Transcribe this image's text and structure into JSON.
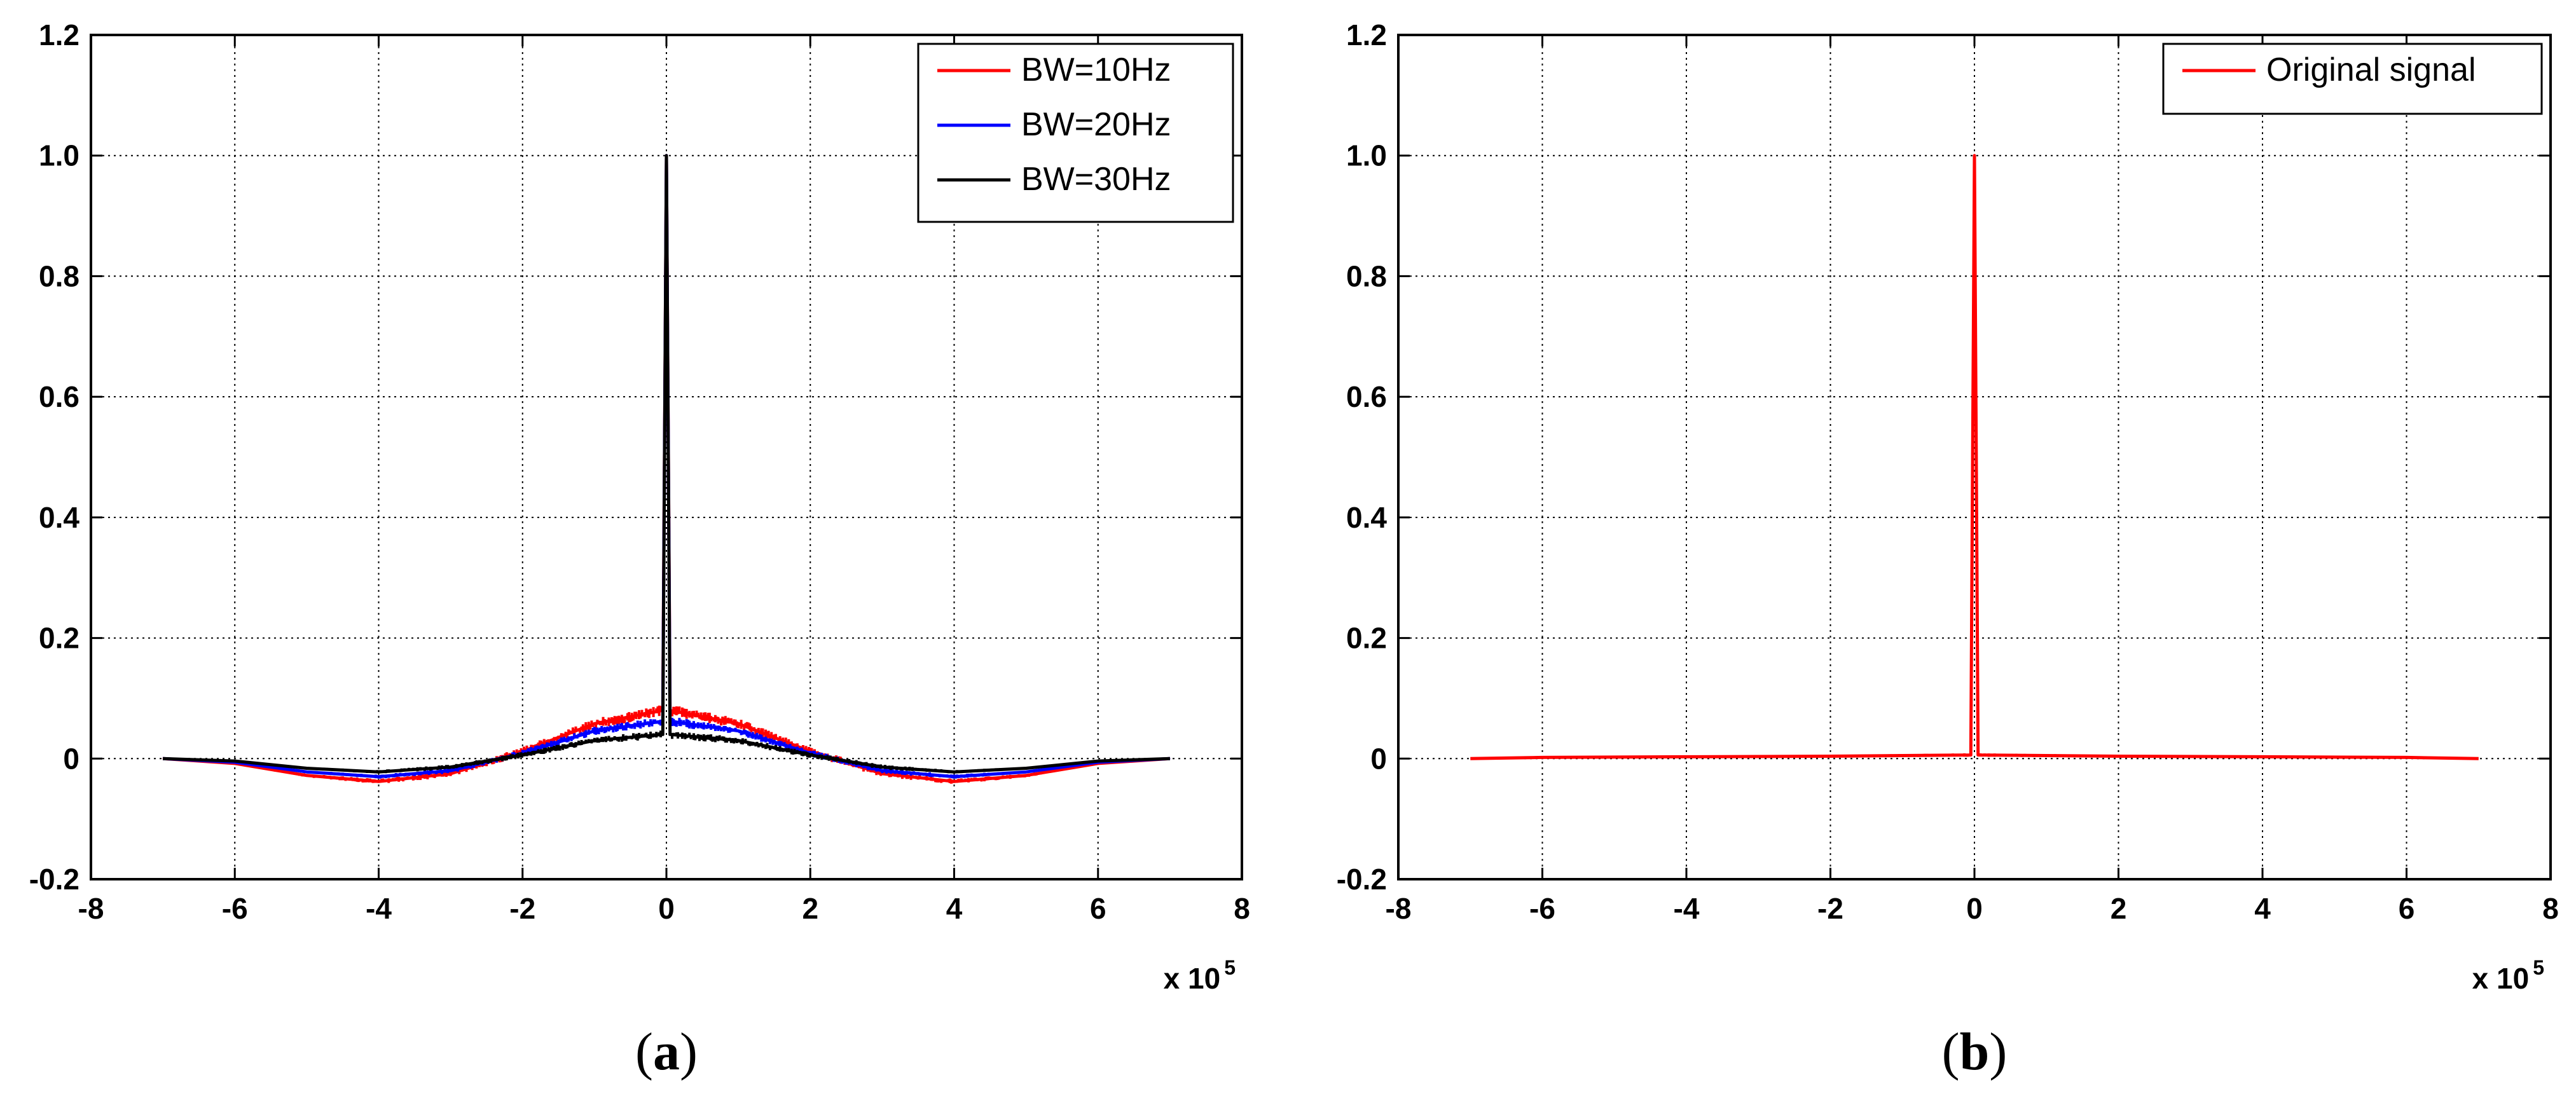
{
  "chart_data": [
    {
      "type": "line",
      "panel_label": "a",
      "title": "",
      "xlabel": "",
      "ylabel": "",
      "x_multiplier": "x 10",
      "x_exponent": "5",
      "xlim": [
        -8,
        8
      ],
      "ylim": [
        -0.2,
        1.2
      ],
      "xticks": [
        "-8",
        "-6",
        "-4",
        "-2",
        "0",
        "2",
        "4",
        "6",
        "8"
      ],
      "yticks": [
        "-0.2",
        "0",
        "0.2",
        "0.4",
        "0.6",
        "0.8",
        "1.0",
        "1.2"
      ],
      "grid": true,
      "legend_position": "top-right",
      "series": [
        {
          "name": "BW=10Hz",
          "color": "#ff0000",
          "x": [
            -7,
            -6,
            -5,
            -4,
            -3,
            -2,
            -1,
            -0.05,
            0,
            0.05,
            1,
            2,
            3,
            4,
            5,
            6,
            7
          ],
          "y": [
            0,
            -0.008,
            -0.028,
            -0.038,
            -0.025,
            0.012,
            0.058,
            0.08,
            1.0,
            0.08,
            0.058,
            0.012,
            -0.025,
            -0.038,
            -0.028,
            -0.008,
            0
          ],
          "noise": 0.01
        },
        {
          "name": "BW=20Hz",
          "color": "#0000ff",
          "x": [
            -7,
            -6,
            -5,
            -4,
            -3,
            -2,
            -1,
            -0.05,
            0,
            0.05,
            1,
            2,
            3,
            4,
            5,
            6,
            7
          ],
          "y": [
            0,
            -0.006,
            -0.022,
            -0.03,
            -0.02,
            0.009,
            0.046,
            0.062,
            1.0,
            0.062,
            0.046,
            0.009,
            -0.02,
            -0.03,
            -0.022,
            -0.006,
            0
          ],
          "noise": 0.008
        },
        {
          "name": "BW=30Hz",
          "color": "#000000",
          "x": [
            -7,
            -6,
            -5,
            -4,
            -3,
            -2,
            -1,
            -0.05,
            0,
            0.05,
            1,
            2,
            3,
            4,
            5,
            6,
            7
          ],
          "y": [
            0,
            -0.004,
            -0.016,
            -0.022,
            -0.014,
            0.006,
            0.03,
            0.04,
            1.0,
            0.04,
            0.03,
            0.006,
            -0.014,
            -0.022,
            -0.016,
            -0.004,
            0
          ],
          "noise": 0.007
        }
      ]
    },
    {
      "type": "line",
      "panel_label": "b",
      "title": "",
      "xlabel": "",
      "ylabel": "",
      "x_multiplier": "x 10",
      "x_exponent": "5",
      "xlim": [
        -8,
        8
      ],
      "ylim": [
        -0.2,
        1.2
      ],
      "xticks": [
        "-8",
        "-6",
        "-4",
        "-2",
        "0",
        "2",
        "4",
        "6",
        "8"
      ],
      "yticks": [
        "-0.2",
        "0",
        "0.2",
        "0.4",
        "0.6",
        "0.8",
        "1.0",
        "1.2"
      ],
      "grid": true,
      "legend_position": "top-right",
      "series": [
        {
          "name": "Original signal",
          "color": "#ff0000",
          "x": [
            -7,
            -6,
            -4,
            -2,
            -0.05,
            0,
            0.05,
            2,
            4,
            6,
            7
          ],
          "y": [
            0,
            0.002,
            0.003,
            0.004,
            0.006,
            1.0,
            0.006,
            0.004,
            0.003,
            0.002,
            0
          ],
          "noise": 0.003
        }
      ]
    }
  ]
}
